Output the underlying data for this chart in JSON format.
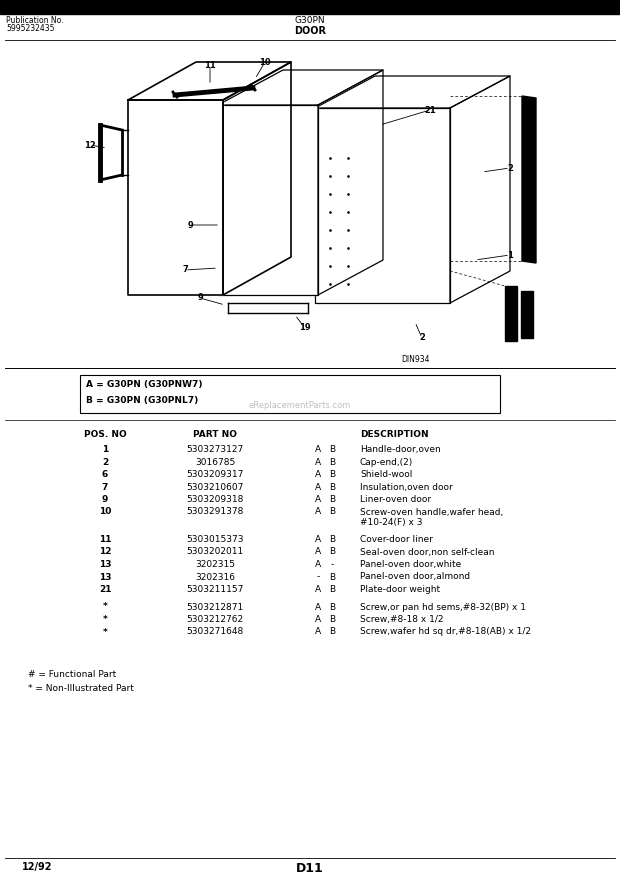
{
  "pub_no_line1": "Publication No.",
  "pub_no_line2": "5995232435",
  "model": "G30PN",
  "section": "DOOR",
  "diagram_id": "DIN934",
  "legend_lines": [
    "A = G30PN (G30PNW7)",
    "B = G30PN (G30PNL7)"
  ],
  "watermark": "eReplacementParts.com",
  "table_rows": [
    [
      "1",
      "5303273127",
      "A",
      "B",
      "Handle-door,oven",
      ""
    ],
    [
      "2",
      "3016785",
      "A",
      "B",
      "Cap-end,(2)",
      ""
    ],
    [
      "6",
      "5303209317",
      "A",
      "B",
      "Shield-wool",
      ""
    ],
    [
      "7",
      "5303210607",
      "A",
      "B",
      "Insulation,oven door",
      ""
    ],
    [
      "9",
      "5303209318",
      "A",
      "B",
      "Liner-oven door",
      ""
    ],
    [
      "10",
      "5303291378",
      "A",
      "B",
      "Screw-oven handle,wafer head,",
      "#10-24(F) x 3"
    ],
    [
      "11",
      "5303015373",
      "A",
      "B",
      "Cover-door liner",
      ""
    ],
    [
      "12",
      "5303202011",
      "A",
      "B",
      "Seal-oven door,non self-clean",
      ""
    ],
    [
      "13",
      "3202315",
      "A",
      "-",
      "Panel-oven door,white",
      ""
    ],
    [
      "13",
      "3202316",
      "-",
      "B",
      "Panel-oven door,almond",
      ""
    ],
    [
      "21",
      "5303211157",
      "A",
      "B",
      "Plate-door weight",
      ""
    ],
    [
      "*",
      "5303212871",
      "A",
      "B",
      "Screw,or pan hd sems,#8-32(BP) x 1",
      ""
    ],
    [
      "*",
      "5303212762",
      "A",
      "B",
      "Screw,#8-18 x 1/2",
      ""
    ],
    [
      "*",
      "5303271648",
      "A",
      "B",
      "Screw,wafer hd sq dr,#8-18(AB) x 1/2",
      ""
    ]
  ],
  "footnotes": [
    "# = Functional Part",
    "* = Non-Illustrated Part"
  ],
  "footer_left": "12/92",
  "footer_center": "D11"
}
